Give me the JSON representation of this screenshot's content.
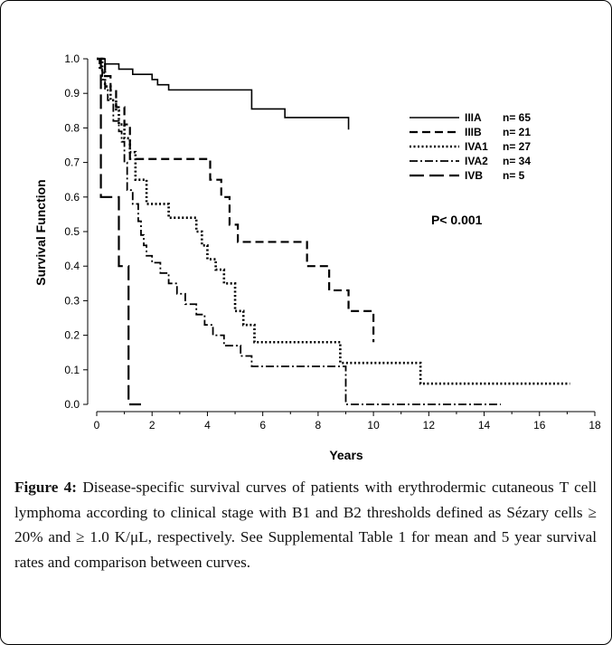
{
  "chart_data": {
    "type": "line",
    "step": true,
    "xlabel": "Years",
    "ylabel": "Survival Function",
    "xlim": [
      0,
      18
    ],
    "ylim": [
      0,
      1.0
    ],
    "xticks": [
      "0",
      "2",
      "4",
      "6",
      "8",
      "10",
      "12",
      "14",
      "16",
      "18"
    ],
    "yticks": [
      "0.0",
      "0.1",
      "0.2",
      "0.3",
      "0.4",
      "0.5",
      "0.6",
      "0.7",
      "0.8",
      "0.9",
      "1.0"
    ],
    "grid": false,
    "legend_position": "right",
    "annotation": "P< 0.001",
    "series": [
      {
        "name": "IIIA",
        "n_label": "n= 65",
        "style": "solid",
        "x": [
          0,
          0.3,
          0.8,
          1.3,
          2.0,
          2.2,
          2.6,
          5.6,
          6.8,
          9.1
        ],
        "y": [
          1.0,
          0.985,
          0.97,
          0.955,
          0.94,
          0.925,
          0.91,
          0.855,
          0.83,
          0.795
        ]
      },
      {
        "name": "IIIB",
        "n_label": "n= 21",
        "style": "dash",
        "x": [
          0,
          0.3,
          0.5,
          0.7,
          1.0,
          1.2,
          3.6,
          4.1,
          4.5,
          4.8,
          5.1,
          7.1,
          7.6,
          8.4,
          9.1,
          10.0
        ],
        "y": [
          1.0,
          0.95,
          0.91,
          0.86,
          0.81,
          0.71,
          0.71,
          0.65,
          0.6,
          0.52,
          0.47,
          0.47,
          0.4,
          0.33,
          0.27,
          0.18
        ]
      },
      {
        "name": "IVA1",
        "n_label": "n= 27",
        "style": "dot",
        "x": [
          0,
          0.2,
          0.3,
          0.5,
          0.7,
          0.8,
          1.0,
          1.2,
          1.4,
          1.8,
          2.6,
          3.6,
          3.8,
          4.0,
          4.3,
          4.6,
          5.0,
          5.3,
          5.7,
          8.8,
          11.7,
          17.1
        ],
        "y": [
          1.0,
          0.96,
          0.92,
          0.88,
          0.85,
          0.81,
          0.77,
          0.73,
          0.65,
          0.58,
          0.54,
          0.5,
          0.46,
          0.42,
          0.39,
          0.35,
          0.27,
          0.23,
          0.18,
          0.12,
          0.06,
          0.06
        ]
      },
      {
        "name": "IVA2",
        "n_label": "n= 34",
        "style": "dashdot",
        "x": [
          0,
          0.1,
          0.2,
          0.3,
          0.4,
          0.6,
          0.8,
          0.9,
          1.0,
          1.1,
          1.3,
          1.5,
          1.6,
          1.7,
          1.8,
          2.0,
          2.3,
          2.6,
          2.9,
          3.2,
          3.6,
          3.9,
          4.2,
          4.6,
          5.2,
          5.6,
          5.9,
          8.7,
          9.0,
          14.6
        ],
        "y": [
          1.0,
          0.97,
          0.94,
          0.91,
          0.88,
          0.82,
          0.79,
          0.76,
          0.7,
          0.62,
          0.58,
          0.53,
          0.49,
          0.46,
          0.43,
          0.41,
          0.38,
          0.35,
          0.32,
          0.29,
          0.26,
          0.23,
          0.2,
          0.17,
          0.14,
          0.11,
          0.11,
          0.11,
          0.0,
          0.0
        ]
      },
      {
        "name": "IVB",
        "n_label": "n= 5",
        "style": "longdash",
        "x": [
          0,
          0.15,
          0.8,
          1.15,
          1.6
        ],
        "y": [
          1.0,
          0.6,
          0.4,
          0.0,
          0.0
        ]
      }
    ]
  },
  "caption": {
    "label": "Figure 4:",
    "text": "Disease-specific survival curves of patients with erythrodermic cutaneous T cell lymphoma according to clinical stage with B1 and B2 thresholds defined as Sézary cells ≥ 20% and ≥ 1.0 K/μL, respectively. See Supplemental Table 1 for mean and 5 year survival rates and comparison between curves."
  }
}
